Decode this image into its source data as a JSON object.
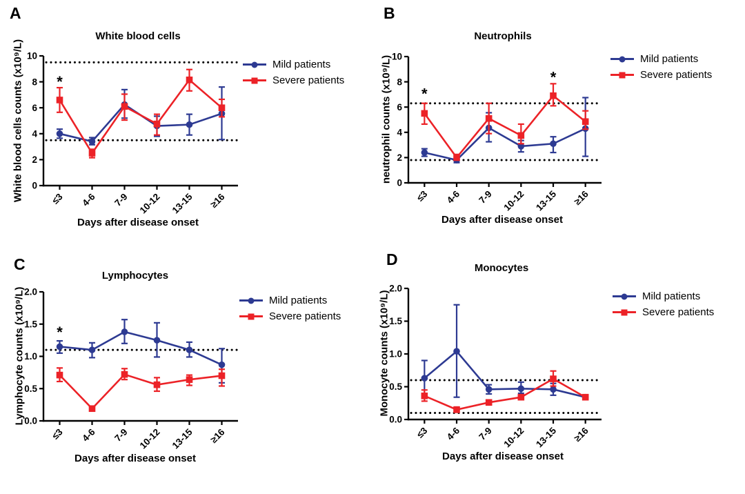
{
  "figure": {
    "legend": {
      "mild": "Mild patients",
      "severe": "Severe patients"
    },
    "colors": {
      "mild": "#2d3a92",
      "severe": "#ec2227",
      "axis": "#000000"
    }
  },
  "chart_data": [
    {
      "type": "line",
      "panel_label": "A",
      "title": "White blood cells",
      "ylabel": "White blood cells counts (x10⁹/L)",
      "xlabel": "Days after disease onset",
      "categories": [
        "≤3",
        "4-6",
        "7-9",
        "10-12",
        "13-15",
        "≥16"
      ],
      "ylim": [
        0,
        10
      ],
      "yticks": [
        "0",
        "2",
        "4",
        "6",
        "8",
        "10"
      ],
      "reference_lines": [
        9.5,
        3.5
      ],
      "grid": false,
      "legend_position": "right",
      "series": [
        {
          "name": "Mild patients",
          "marker": "circle",
          "color_key": "mild",
          "values": [
            4.0,
            3.4,
            6.25,
            4.6,
            4.7,
            5.55
          ],
          "err_up": [
            0.35,
            0.3,
            1.15,
            0.75,
            0.8,
            2.05
          ],
          "err_down": [
            0.35,
            0.25,
            1.05,
            0.8,
            0.8,
            2.0
          ]
        },
        {
          "name": "Severe patients",
          "marker": "square",
          "color_key": "severe",
          "values": [
            6.6,
            2.5,
            6.1,
            4.75,
            8.15,
            6.0
          ],
          "err_up": [
            0.95,
            0.3,
            0.95,
            0.75,
            0.8,
            0.65
          ],
          "err_down": [
            0.95,
            0.35,
            1.05,
            0.85,
            0.85,
            0.7
          ]
        }
      ],
      "significance": [
        {
          "x_index": 0,
          "y": 8.25,
          "symbol": "*"
        }
      ]
    },
    {
      "type": "line",
      "panel_label": "B",
      "title": "Neutrophils",
      "ylabel": "neutrophil counts (x10⁹/L)",
      "xlabel": "Days after disease onset",
      "categories": [
        "≤3",
        "4-6",
        "7-9",
        "10-12",
        "13-15",
        "≥16"
      ],
      "ylim": [
        0,
        10
      ],
      "yticks": [
        "0",
        "2",
        "4",
        "6",
        "8",
        "10"
      ],
      "reference_lines": [
        6.3,
        1.8
      ],
      "grid": false,
      "legend_position": "right",
      "series": [
        {
          "name": "Mild patients",
          "marker": "circle",
          "color_key": "mild",
          "values": [
            2.4,
            1.8,
            4.35,
            2.9,
            3.1,
            4.3
          ],
          "err_up": [
            0.3,
            0.2,
            1.2,
            0.45,
            0.55,
            2.45
          ],
          "err_down": [
            0.3,
            0.2,
            1.1,
            0.45,
            0.7,
            2.2
          ]
        },
        {
          "name": "Severe patients",
          "marker": "square",
          "color_key": "severe",
          "values": [
            5.5,
            2.0,
            5.1,
            3.75,
            6.9,
            4.85
          ],
          "err_up": [
            0.8,
            0.25,
            1.2,
            0.9,
            0.95,
            0.85
          ],
          "err_down": [
            0.85,
            0.2,
            1.2,
            0.65,
            0.8,
            0.6
          ]
        }
      ],
      "significance": [
        {
          "x_index": 0,
          "y": 7.3,
          "symbol": "*"
        },
        {
          "x_index": 4,
          "y": 8.6,
          "symbol": "*"
        }
      ]
    },
    {
      "type": "line",
      "panel_label": "C",
      "title": "Lymphocytes",
      "ylabel": "Lymphocyte counts (x10⁹/L)",
      "xlabel": "Days after disease onset",
      "categories": [
        "≤3",
        "4-6",
        "7-9",
        "10-12",
        "13-15",
        "≥16"
      ],
      "ylim": [
        0,
        2
      ],
      "yticks": [
        "0.0",
        "0.5",
        "1.0",
        "1.5",
        "2.0"
      ],
      "reference_lines": [
        1.1
      ],
      "grid": false,
      "legend_position": "right",
      "series": [
        {
          "name": "Mild patients",
          "marker": "circle",
          "color_key": "mild",
          "values": [
            1.15,
            1.1,
            1.38,
            1.25,
            1.1,
            0.87
          ],
          "err_up": [
            0.09,
            0.11,
            0.19,
            0.27,
            0.12,
            0.25
          ],
          "err_down": [
            0.1,
            0.12,
            0.18,
            0.26,
            0.11,
            0.28
          ]
        },
        {
          "name": "Severe patients",
          "marker": "square",
          "color_key": "severe",
          "values": [
            0.71,
            0.19,
            0.72,
            0.56,
            0.64,
            0.7
          ],
          "err_up": [
            0.11,
            0.03,
            0.09,
            0.11,
            0.07,
            0.1
          ],
          "err_down": [
            0.1,
            0.03,
            0.08,
            0.1,
            0.09,
            0.16
          ]
        }
      ],
      "significance": [
        {
          "x_index": 0,
          "y": 1.42,
          "symbol": "*"
        }
      ]
    },
    {
      "type": "line",
      "panel_label": "D",
      "title": "Monocytes",
      "ylabel": "Monocyte counts (x10⁹/L)",
      "xlabel": "Days after disease onset",
      "categories": [
        "≤3",
        "4-6",
        "7-9",
        "10-12",
        "13-15",
        "≥16"
      ],
      "ylim": [
        0,
        2
      ],
      "yticks": [
        "0.0",
        "0.5",
        "1.0",
        "1.5",
        "2.0"
      ],
      "reference_lines": [
        0.6,
        0.1
      ],
      "grid": false,
      "legend_position": "right",
      "series": [
        {
          "name": "Mild patients",
          "marker": "circle",
          "color_key": "mild",
          "values": [
            0.63,
            1.04,
            0.46,
            0.47,
            0.46,
            0.34
          ],
          "err_up": [
            0.27,
            0.71,
            0.07,
            0.1,
            0.09,
            0.02
          ],
          "err_down": [
            0.26,
            0.7,
            0.07,
            0.07,
            0.09,
            0.02
          ]
        },
        {
          "name": "Severe patients",
          "marker": "square",
          "color_key": "severe",
          "values": [
            0.36,
            0.15,
            0.26,
            0.34,
            0.62,
            0.34
          ],
          "err_up": [
            0.09,
            0.04,
            0.03,
            0.03,
            0.12,
            0.03
          ],
          "err_down": [
            0.08,
            0.04,
            0.03,
            0.03,
            0.11,
            0.03
          ]
        }
      ],
      "significance": []
    }
  ]
}
